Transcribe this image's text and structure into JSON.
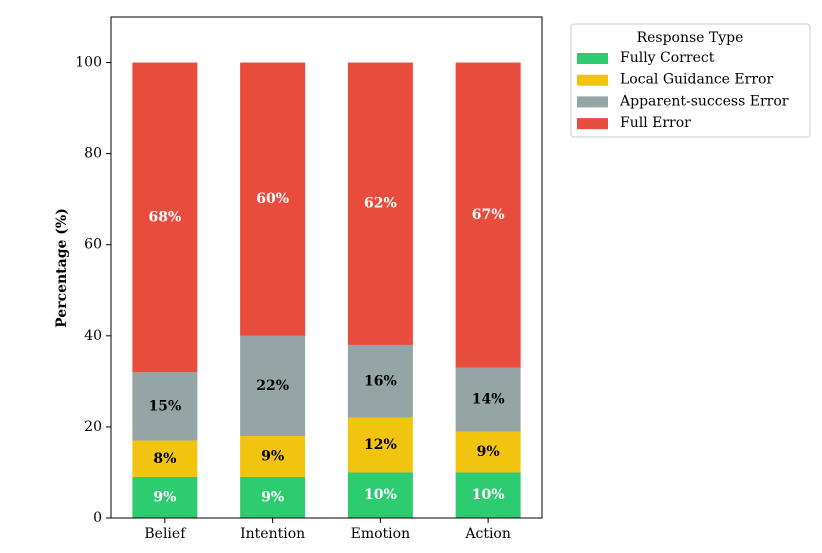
{
  "chart_data": {
    "type": "bar",
    "stacked": true,
    "categories": [
      "Belief",
      "Intention",
      "Emotion",
      "Action"
    ],
    "series": [
      {
        "name": "Fully Correct",
        "color": "#2ecc71",
        "label_color": "#ffffff",
        "values": [
          9,
          9,
          10,
          10
        ],
        "labels": [
          "9%",
          "9%",
          "10%",
          "10%"
        ]
      },
      {
        "name": "Local Guidance Error",
        "color": "#f1c40f",
        "label_color": "#000000",
        "values": [
          8,
          9,
          12,
          9
        ],
        "labels": [
          "8%",
          "9%",
          "12%",
          "9%"
        ]
      },
      {
        "name": "Apparent-success Error",
        "color": "#95a5a6",
        "label_color": "#000000",
        "values": [
          15,
          22,
          16,
          14
        ],
        "labels": [
          "15%",
          "22%",
          "16%",
          "14%"
        ]
      },
      {
        "name": "Full Error",
        "color": "#e74c3c",
        "label_color": "#ffffff",
        "values": [
          68,
          60,
          62,
          67
        ],
        "labels": [
          "68%",
          "60%",
          "62%",
          "67%"
        ]
      }
    ],
    "ylabel": "Percentage (%)",
    "xlabel": "",
    "ylim": [
      0,
      110
    ],
    "yticks": [
      0,
      20,
      40,
      60,
      80,
      100
    ],
    "ytick_labels": [
      "0",
      "20",
      "40",
      "60",
      "80",
      "100"
    ],
    "legend_title": "Response Type",
    "legend_position": "outside-top-right",
    "grid": false
  }
}
